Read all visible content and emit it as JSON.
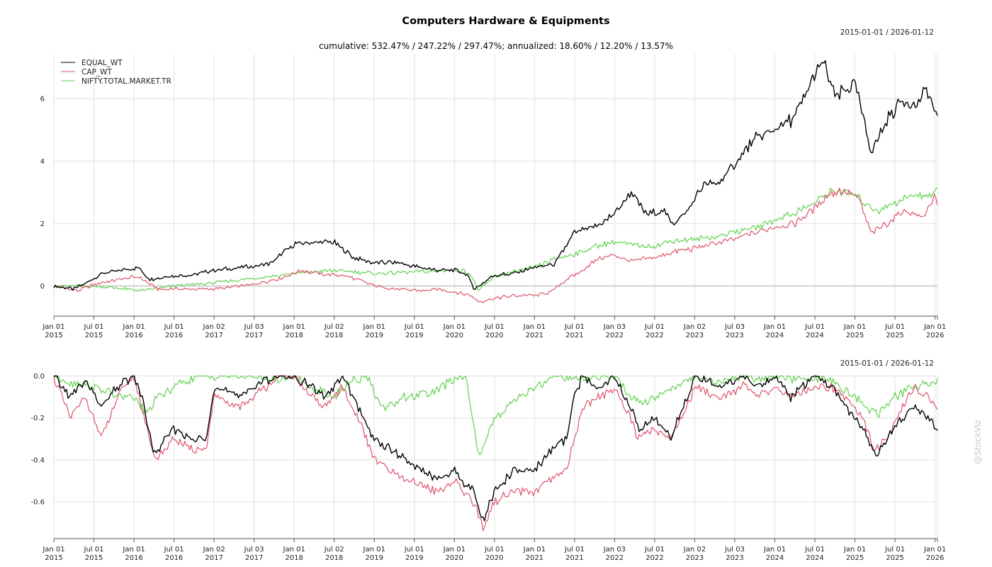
{
  "chart_data": [
    {
      "type": "line",
      "title": "Computers Hardware & Equipments",
      "date_range": "2015-01-01 / 2026-01-12",
      "subtitle": "cumulative: 532.47% / 247.22% / 297.47%; annualized: 18.60% / 12.20% / 13.57%",
      "x_ticks": [
        [
          "Jan 01",
          "2015"
        ],
        [
          "Jul 01",
          "2015"
        ],
        [
          "Jan 01",
          "2016"
        ],
        [
          "Jul 01",
          "2016"
        ],
        [
          "Jan 02",
          "2017"
        ],
        [
          "Jul 03",
          "2017"
        ],
        [
          "Jan 01",
          "2018"
        ],
        [
          "Jul 02",
          "2018"
        ],
        [
          "Jan 01",
          "2019"
        ],
        [
          "Jul 01",
          "2019"
        ],
        [
          "Jan 01",
          "2020"
        ],
        [
          "Jul 01",
          "2020"
        ],
        [
          "Jan 01",
          "2021"
        ],
        [
          "Jul 01",
          "2021"
        ],
        [
          "Jan 03",
          "2022"
        ],
        [
          "Jul 01",
          "2022"
        ],
        [
          "Jan 02",
          "2023"
        ],
        [
          "Jul 03",
          "2023"
        ],
        [
          "Jan 01",
          "2024"
        ],
        [
          "Jul 01",
          "2024"
        ],
        [
          "Jan 01",
          "2025"
        ],
        [
          "Jul 01",
          "2025"
        ],
        [
          "Jan 01",
          "2026"
        ]
      ],
      "x_range": [
        2015.0,
        2026.03
      ],
      "ylim": [
        -0.8,
        7.4
      ],
      "y_ticks": [
        0,
        2,
        4,
        6
      ],
      "legend": [
        "EQUAL_WT",
        "CAP_WT",
        "NIFTY.TOTAL.MARKET.TR"
      ],
      "series": [
        {
          "name": "EQUAL_WT",
          "color": "#000000",
          "x": [
            2015.0,
            2015.25,
            2015.4,
            2015.6,
            2015.85,
            2016.05,
            2016.2,
            2016.4,
            2016.7,
            2017.0,
            2017.4,
            2017.7,
            2018.0,
            2018.25,
            2018.5,
            2018.75,
            2019.0,
            2019.3,
            2019.55,
            2019.8,
            2020.0,
            2020.15,
            2020.25,
            2020.5,
            2020.75,
            2021.0,
            2021.25,
            2021.5,
            2021.75,
            2022.0,
            2022.2,
            2022.4,
            2022.6,
            2022.75,
            2022.9,
            2023.1,
            2023.3,
            2023.5,
            2023.75,
            2024.0,
            2024.25,
            2024.45,
            2024.6,
            2024.75,
            2025.0,
            2025.2,
            2025.4,
            2025.6,
            2025.75,
            2025.9,
            2026.03
          ],
          "values": [
            0.0,
            -0.1,
            0.1,
            0.4,
            0.5,
            0.6,
            0.2,
            0.3,
            0.35,
            0.5,
            0.6,
            0.7,
            1.35,
            1.4,
            1.4,
            0.9,
            0.75,
            0.75,
            0.6,
            0.5,
            0.5,
            0.4,
            -0.1,
            0.35,
            0.4,
            0.6,
            0.7,
            1.7,
            1.9,
            2.3,
            3.0,
            2.3,
            2.4,
            2.0,
            2.4,
            3.2,
            3.3,
            3.9,
            4.7,
            5.0,
            5.4,
            6.5,
            7.2,
            6.0,
            6.5,
            4.3,
            5.3,
            6.0,
            5.7,
            6.3,
            5.3
          ]
        },
        {
          "name": "CAP_WT",
          "color": "#DF536B",
          "x": [
            2015.0,
            2015.3,
            2015.5,
            2015.8,
            2016.05,
            2016.3,
            2016.6,
            2017.0,
            2017.5,
            2017.9,
            2018.1,
            2018.4,
            2018.6,
            2018.8,
            2019.0,
            2019.3,
            2019.6,
            2019.8,
            2020.0,
            2020.2,
            2020.3,
            2020.5,
            2020.75,
            2021.0,
            2021.2,
            2021.4,
            2021.6,
            2021.8,
            2022.0,
            2022.2,
            2022.5,
            2022.75,
            2023.0,
            2023.3,
            2023.5,
            2023.75,
            2024.0,
            2024.25,
            2024.5,
            2024.65,
            2024.85,
            2025.05,
            2025.2,
            2025.4,
            2025.6,
            2025.85,
            2026.0,
            2026.03
          ],
          "values": [
            0.0,
            -0.15,
            0.05,
            0.2,
            0.3,
            -0.1,
            -0.1,
            -0.1,
            0.05,
            0.3,
            0.5,
            0.35,
            0.35,
            0.2,
            0.0,
            -0.1,
            -0.15,
            -0.1,
            -0.2,
            -0.3,
            -0.5,
            -0.4,
            -0.3,
            -0.3,
            -0.2,
            0.2,
            0.5,
            0.9,
            1.0,
            0.8,
            0.9,
            1.1,
            1.2,
            1.4,
            1.5,
            1.7,
            1.9,
            2.0,
            2.5,
            2.9,
            3.1,
            2.8,
            1.7,
            2.0,
            2.4,
            2.2,
            2.9,
            2.5
          ]
        },
        {
          "name": "NIFTY.TOTAL.MARKET.TR",
          "color": "#61D04F",
          "x": [
            2015.0,
            2015.5,
            2016.1,
            2016.5,
            2017.0,
            2017.5,
            2018.0,
            2018.5,
            2018.8,
            2019.0,
            2019.5,
            2019.9,
            2020.1,
            2020.2,
            2020.3,
            2020.5,
            2020.75,
            2021.0,
            2021.3,
            2021.6,
            2021.8,
            2022.0,
            2022.3,
            2022.5,
            2022.75,
            2023.0,
            2023.3,
            2023.6,
            2023.8,
            2024.0,
            2024.3,
            2024.5,
            2024.7,
            2024.85,
            2025.0,
            2025.15,
            2025.3,
            2025.6,
            2025.85,
            2026.03
          ],
          "values": [
            0.0,
            0.0,
            -0.15,
            0.0,
            0.1,
            0.25,
            0.4,
            0.5,
            0.45,
            0.4,
            0.45,
            0.5,
            0.5,
            0.4,
            -0.15,
            0.3,
            0.45,
            0.6,
            0.9,
            1.1,
            1.3,
            1.4,
            1.3,
            1.3,
            1.45,
            1.5,
            1.6,
            1.8,
            1.9,
            2.1,
            2.4,
            2.7,
            3.0,
            3.0,
            2.9,
            2.6,
            2.4,
            2.8,
            2.9,
            3.0
          ]
        }
      ]
    },
    {
      "type": "line",
      "date_range": "2015-01-01 / 2026-01-12",
      "x_ticks": [
        [
          "Jan 01",
          "2015"
        ],
        [
          "Jul 01",
          "2015"
        ],
        [
          "Jan 01",
          "2016"
        ],
        [
          "Jul 01",
          "2016"
        ],
        [
          "Jan 02",
          "2017"
        ],
        [
          "Jul 03",
          "2017"
        ],
        [
          "Jan 01",
          "2018"
        ],
        [
          "Jul 02",
          "2018"
        ],
        [
          "Jan 01",
          "2019"
        ],
        [
          "Jul 01",
          "2019"
        ],
        [
          "Jan 01",
          "2020"
        ],
        [
          "Jul 01",
          "2020"
        ],
        [
          "Jan 01",
          "2021"
        ],
        [
          "Jul 01",
          "2021"
        ],
        [
          "Jan 03",
          "2022"
        ],
        [
          "Jul 01",
          "2022"
        ],
        [
          "Jan 02",
          "2023"
        ],
        [
          "Jul 03",
          "2023"
        ],
        [
          "Jan 01",
          "2024"
        ],
        [
          "Jul 01",
          "2024"
        ],
        [
          "Jan 01",
          "2025"
        ],
        [
          "Jul 01",
          "2025"
        ],
        [
          "Jan 01",
          "2026"
        ]
      ],
      "x_range": [
        2015.0,
        2026.03
      ],
      "ylim": [
        -0.77,
        0.0
      ],
      "y_ticks": [
        0.0,
        -0.2,
        -0.4,
        -0.6
      ],
      "y_tick_labels": [
        "0.0",
        "-0.2",
        "-0.4",
        "-0.6"
      ],
      "series": [
        {
          "name": "EQUAL_WT",
          "color": "#000000",
          "x": [
            2015.0,
            2015.2,
            2015.4,
            2015.6,
            2015.8,
            2016.0,
            2016.1,
            2016.25,
            2016.5,
            2016.7,
            2016.9,
            2017.0,
            2017.3,
            2017.5,
            2017.8,
            2018.0,
            2018.2,
            2018.4,
            2018.6,
            2018.8,
            2019.0,
            2019.2,
            2019.4,
            2019.6,
            2019.8,
            2020.0,
            2020.1,
            2020.25,
            2020.35,
            2020.5,
            2020.75,
            2021.0,
            2021.2,
            2021.4,
            2021.5,
            2021.6,
            2021.8,
            2022.0,
            2022.2,
            2022.3,
            2022.5,
            2022.7,
            2022.9,
            2023.0,
            2023.3,
            2023.6,
            2023.8,
            2024.0,
            2024.2,
            2024.5,
            2024.7,
            2024.9,
            2025.1,
            2025.25,
            2025.4,
            2025.6,
            2025.75,
            2025.9,
            2026.03
          ],
          "values": [
            0.0,
            -0.1,
            -0.02,
            -0.15,
            -0.05,
            0.0,
            -0.1,
            -0.38,
            -0.25,
            -0.3,
            -0.3,
            -0.05,
            -0.1,
            -0.05,
            0.0,
            0.0,
            -0.05,
            -0.1,
            0.0,
            -0.15,
            -0.3,
            -0.35,
            -0.4,
            -0.45,
            -0.5,
            -0.45,
            -0.5,
            -0.55,
            -0.7,
            -0.55,
            -0.45,
            -0.45,
            -0.35,
            -0.3,
            -0.1,
            0.0,
            -0.05,
            0.0,
            -0.15,
            -0.25,
            -0.2,
            -0.3,
            -0.1,
            0.0,
            -0.05,
            0.0,
            -0.05,
            0.0,
            -0.1,
            0.0,
            -0.05,
            -0.15,
            -0.25,
            -0.38,
            -0.3,
            -0.2,
            -0.15,
            -0.2,
            -0.25
          ]
        },
        {
          "name": "CAP_WT",
          "color": "#DF536B",
          "x": [
            2015.0,
            2015.2,
            2015.4,
            2015.6,
            2015.8,
            2016.0,
            2016.1,
            2016.25,
            2016.5,
            2016.7,
            2016.9,
            2017.0,
            2017.3,
            2017.5,
            2017.8,
            2018.0,
            2018.2,
            2018.4,
            2018.6,
            2018.8,
            2019.0,
            2019.2,
            2019.4,
            2019.6,
            2019.8,
            2020.0,
            2020.1,
            2020.25,
            2020.35,
            2020.5,
            2020.75,
            2021.0,
            2021.2,
            2021.4,
            2021.5,
            2021.6,
            2021.8,
            2022.0,
            2022.2,
            2022.3,
            2022.5,
            2022.7,
            2022.9,
            2023.0,
            2023.3,
            2023.6,
            2023.8,
            2024.0,
            2024.2,
            2024.5,
            2024.7,
            2024.9,
            2025.1,
            2025.25,
            2025.4,
            2025.6,
            2025.75,
            2025.9,
            2026.03
          ],
          "values": [
            0.0,
            -0.2,
            -0.1,
            -0.3,
            -0.1,
            0.0,
            -0.15,
            -0.4,
            -0.3,
            -0.35,
            -0.35,
            -0.1,
            -0.15,
            -0.1,
            0.0,
            0.0,
            -0.1,
            -0.15,
            -0.05,
            -0.2,
            -0.4,
            -0.45,
            -0.5,
            -0.52,
            -0.55,
            -0.5,
            -0.55,
            -0.6,
            -0.73,
            -0.6,
            -0.55,
            -0.55,
            -0.5,
            -0.45,
            -0.3,
            -0.15,
            -0.1,
            -0.05,
            -0.2,
            -0.3,
            -0.25,
            -0.3,
            -0.15,
            -0.05,
            -0.1,
            -0.05,
            -0.1,
            -0.05,
            -0.1,
            -0.05,
            -0.05,
            -0.1,
            -0.2,
            -0.35,
            -0.3,
            -0.15,
            -0.05,
            -0.1,
            -0.15
          ]
        },
        {
          "name": "NIFTY.TOTAL.MARKET.TR",
          "color": "#61D04F",
          "x": [
            2015.0,
            2015.2,
            2015.5,
            2015.8,
            2016.0,
            2016.15,
            2016.3,
            2016.5,
            2016.8,
            2017.0,
            2017.5,
            2017.8,
            2018.0,
            2018.2,
            2018.5,
            2018.7,
            2018.9,
            2019.1,
            2019.4,
            2019.7,
            2020.0,
            2020.15,
            2020.22,
            2020.3,
            2020.5,
            2020.8,
            2021.0,
            2021.3,
            2021.6,
            2021.8,
            2022.0,
            2022.2,
            2022.4,
            2022.6,
            2022.8,
            2023.0,
            2023.3,
            2023.6,
            2023.9,
            2024.1,
            2024.3,
            2024.6,
            2024.8,
            2025.0,
            2025.15,
            2025.3,
            2025.5,
            2025.7,
            2025.9,
            2026.03
          ],
          "values": [
            0.0,
            -0.03,
            -0.05,
            -0.1,
            -0.1,
            -0.18,
            -0.1,
            -0.05,
            0.0,
            0.0,
            0.0,
            -0.02,
            0.0,
            -0.05,
            -0.1,
            -0.02,
            0.0,
            -0.15,
            -0.1,
            -0.08,
            -0.02,
            0.0,
            -0.2,
            -0.38,
            -0.2,
            -0.1,
            -0.05,
            0.0,
            -0.02,
            0.0,
            0.0,
            -0.1,
            -0.12,
            -0.08,
            -0.05,
            0.0,
            -0.03,
            0.0,
            -0.02,
            0.0,
            -0.02,
            0.0,
            -0.05,
            -0.1,
            -0.15,
            -0.18,
            -0.1,
            -0.06,
            -0.04,
            -0.03
          ]
        }
      ]
    }
  ],
  "watermark": "@StockViz"
}
